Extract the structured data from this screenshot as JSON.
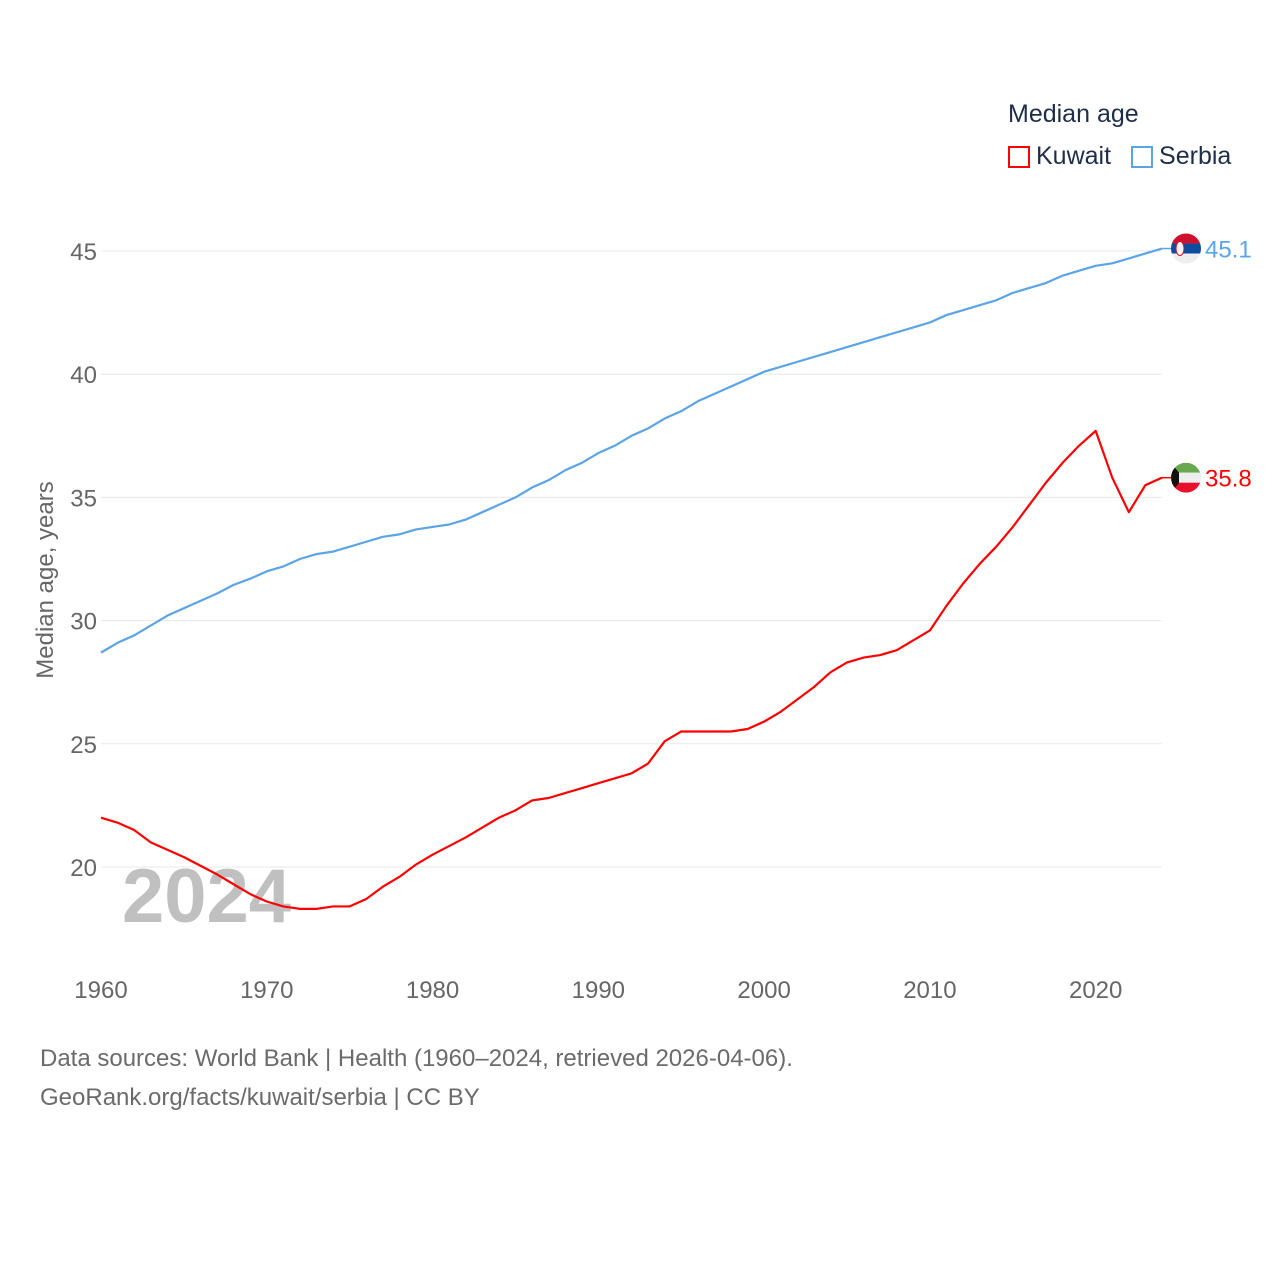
{
  "chart_data": {
    "type": "line",
    "title": "Median age",
    "xlabel": "",
    "ylabel": "Median age, years",
    "xlim": [
      1960,
      2024
    ],
    "ylim": [
      17,
      47
    ],
    "yticks": [
      20,
      25,
      30,
      35,
      40,
      45
    ],
    "xticks": [
      1960,
      1970,
      1980,
      1990,
      2000,
      2010,
      2020
    ],
    "grid": true,
    "legend_placement": "top-right",
    "watermark_year": "2024",
    "x": [
      1960,
      1961,
      1962,
      1963,
      1964,
      1965,
      1966,
      1967,
      1968,
      1969,
      1970,
      1971,
      1972,
      1973,
      1974,
      1975,
      1976,
      1977,
      1978,
      1979,
      1980,
      1981,
      1982,
      1983,
      1984,
      1985,
      1986,
      1987,
      1988,
      1989,
      1990,
      1991,
      1992,
      1993,
      1994,
      1995,
      1996,
      1997,
      1998,
      1999,
      2000,
      2001,
      2002,
      2003,
      2004,
      2005,
      2006,
      2007,
      2008,
      2009,
      2010,
      2011,
      2012,
      2013,
      2014,
      2015,
      2016,
      2017,
      2018,
      2019,
      2020,
      2021,
      2022,
      2023,
      2024
    ],
    "series": [
      {
        "name": "Kuwait",
        "color": "#ff0000",
        "end_label": "35.8",
        "values": [
          22.0,
          21.8,
          21.5,
          21.0,
          20.7,
          20.4,
          20.05,
          19.7,
          19.3,
          18.9,
          18.6,
          18.4,
          18.3,
          18.3,
          18.4,
          18.4,
          18.7,
          19.2,
          19.6,
          20.1,
          20.5,
          20.85,
          21.2,
          21.6,
          22.0,
          22.3,
          22.7,
          22.8,
          23.0,
          23.2,
          23.4,
          23.6,
          23.8,
          24.2,
          25.1,
          25.5,
          25.5,
          25.5,
          25.5,
          25.6,
          25.9,
          26.3,
          26.8,
          27.3,
          27.9,
          28.3,
          28.5,
          28.6,
          28.8,
          29.2,
          29.6,
          30.6,
          31.5,
          32.3,
          33.0,
          33.8,
          34.7,
          35.6,
          36.4,
          37.1,
          37.7,
          35.8,
          34.4,
          35.5,
          35.8
        ]
      },
      {
        "name": "Serbia",
        "color": "#5ba4e6",
        "end_label": "45.1",
        "values": [
          28.7,
          29.1,
          29.4,
          29.8,
          30.2,
          30.5,
          30.8,
          31.1,
          31.45,
          31.7,
          32.0,
          32.2,
          32.5,
          32.7,
          32.8,
          33.0,
          33.2,
          33.4,
          33.5,
          33.7,
          33.8,
          33.9,
          34.1,
          34.4,
          34.7,
          35.0,
          35.4,
          35.7,
          36.1,
          36.4,
          36.8,
          37.1,
          37.5,
          37.8,
          38.2,
          38.5,
          38.9,
          39.2,
          39.5,
          39.8,
          40.1,
          40.3,
          40.5,
          40.7,
          40.9,
          41.1,
          41.3,
          41.5,
          41.7,
          41.9,
          42.1,
          42.4,
          42.6,
          42.8,
          43.0,
          43.3,
          43.5,
          43.7,
          44.0,
          44.2,
          44.4,
          44.5,
          44.7,
          44.9,
          45.1
        ]
      }
    ]
  },
  "source_line1": "Data sources: World Bank | Health (1960–2024, retrieved 2026-04-06).",
  "source_line2": "GeoRank.org/facts/kuwait/serbia | CC BY"
}
